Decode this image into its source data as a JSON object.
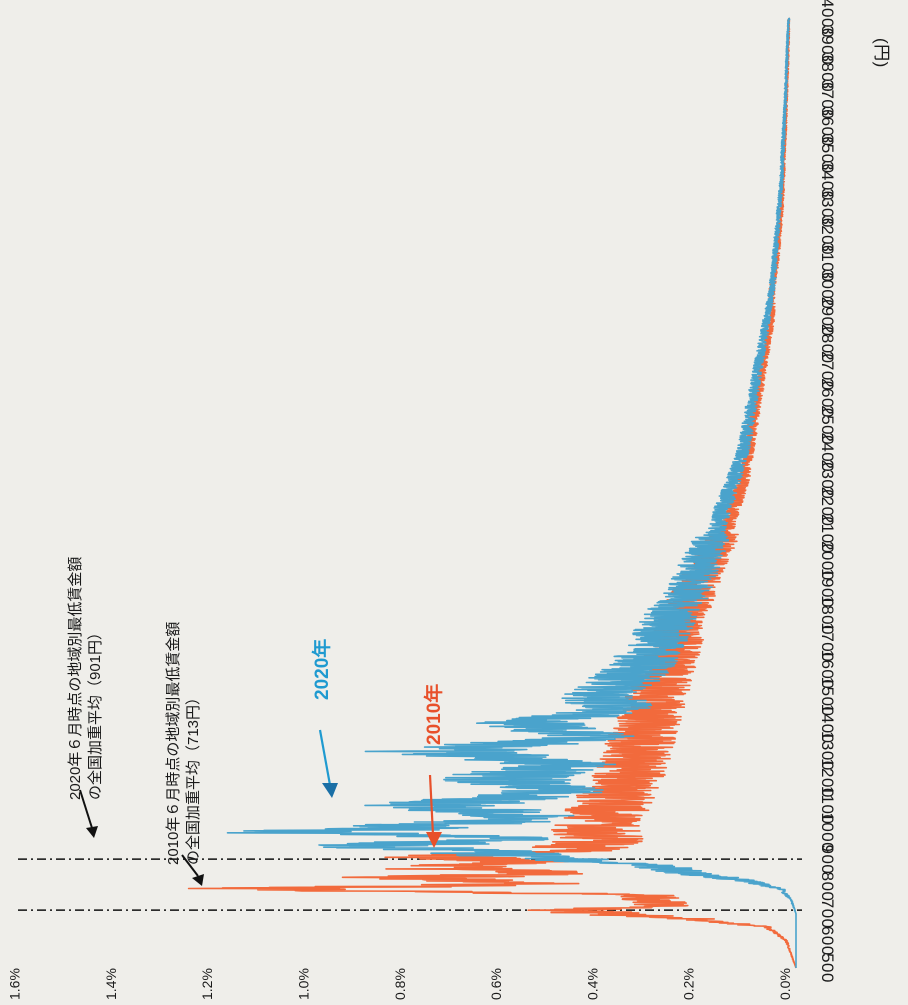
{
  "chart_data": {
    "type": "line",
    "orientation": "rotated-90-clockwise",
    "x_unit": "(円)",
    "x_ticks": [
      500,
      600,
      700,
      800,
      900,
      1000,
      1100,
      1200,
      1300,
      1400,
      1500,
      1600,
      1700,
      1800,
      1900,
      2000,
      2100,
      2200,
      2300,
      2400,
      2500,
      2600,
      2700,
      2800,
      2900,
      3000,
      3100,
      3200,
      3300,
      3400,
      3500,
      3600,
      3700,
      3800,
      3900,
      4000
    ],
    "x_tick_labels": [
      "500",
      "600",
      "700",
      "800",
      "900",
      "1000",
      "1100",
      "1200",
      "1300",
      "1400",
      "1500",
      "1600",
      "1700",
      "1800",
      "1900",
      "2000",
      "2100",
      "2200",
      "2300",
      "2400",
      "2500",
      "2600",
      "2700",
      "2800",
      "2900",
      "3000",
      "3100",
      "3200",
      "3300",
      "3400",
      "3500",
      "3600",
      "3700",
      "3800",
      "3900",
      "4000"
    ],
    "y_ticks": [
      0,
      0.2,
      0.4,
      0.6,
      0.8,
      1.0,
      1.2,
      1.4,
      1.6
    ],
    "y_tick_labels": [
      "0.0%",
      "0.2%",
      "0.4%",
      "0.6%",
      "0.8%",
      "1.0%",
      "1.2%",
      "1.4%",
      "1.6%"
    ],
    "xlim": [
      500,
      4000
    ],
    "ylim": [
      0,
      1.6
    ],
    "grid": false,
    "series": [
      {
        "name": "2010年",
        "color": "#f26a3c",
        "x": [
          500,
          550,
          600,
          650,
          680,
          700,
          713,
          730,
          750,
          770,
          790,
          810,
          830,
          850,
          870,
          890,
          910,
          930,
          950,
          970,
          1000,
          1050,
          1100,
          1150,
          1200,
          1250,
          1300,
          1400,
          1500,
          1600,
          1700,
          1800,
          1900,
          2000,
          2100,
          2200,
          2300,
          2400,
          2500,
          2600,
          2700,
          2800,
          2900,
          3000,
          3100,
          3200,
          3300,
          3400,
          3500,
          3600,
          3700,
          3800,
          3900,
          4000
        ],
        "y": [
          0.0,
          0.01,
          0.02,
          0.06,
          0.2,
          0.4,
          0.47,
          0.28,
          0.3,
          0.3,
          1.15,
          0.55,
          0.85,
          0.5,
          0.78,
          0.55,
          0.8,
          0.45,
          0.45,
          0.4,
          0.42,
          0.4,
          0.39,
          0.37,
          0.35,
          0.34,
          0.33,
          0.31,
          0.29,
          0.27,
          0.25,
          0.23,
          0.21,
          0.18,
          0.15,
          0.13,
          0.11,
          0.1,
          0.09,
          0.08,
          0.07,
          0.06,
          0.05,
          0.05,
          0.04,
          0.035,
          0.03,
          0.027,
          0.025,
          0.022,
          0.02,
          0.018,
          0.016,
          0.015
        ]
      },
      {
        "name": "2020年",
        "color": "#4aa3cc",
        "x": [
          500,
          600,
          700,
          750,
          790,
          820,
          850,
          880,
          901,
          920,
          950,
          980,
          1000,
          1050,
          1100,
          1150,
          1200,
          1250,
          1300,
          1350,
          1400,
          1450,
          1500,
          1600,
          1700,
          1800,
          1900,
          2000,
          2100,
          2200,
          2300,
          2400,
          2500,
          2600,
          2700,
          2800,
          2900,
          3000,
          3100,
          3200,
          3300,
          3400,
          3500,
          3600,
          3700,
          3800,
          3900,
          4000
        ],
        "y": [
          0.0,
          0.0,
          0.0,
          0.01,
          0.03,
          0.1,
          0.22,
          0.32,
          0.48,
          0.62,
          0.85,
          0.6,
          1.02,
          0.55,
          0.75,
          0.5,
          0.62,
          0.48,
          0.75,
          0.42,
          0.56,
          0.38,
          0.4,
          0.33,
          0.29,
          0.26,
          0.22,
          0.2,
          0.17,
          0.15,
          0.13,
          0.11,
          0.1,
          0.09,
          0.08,
          0.07,
          0.06,
          0.05,
          0.045,
          0.04,
          0.035,
          0.03,
          0.028,
          0.025,
          0.022,
          0.02,
          0.018,
          0.015
        ]
      }
    ],
    "reference_lines": [
      {
        "x": 713,
        "label": [
          "2010年６月時点の地域別最低賃金額",
          "の全国加重平均（713円）"
        ]
      },
      {
        "x": 901,
        "label": [
          "2020年６月時点の地域別最低賃金額",
          "の全国加重平均（901円）"
        ]
      }
    ],
    "series_labels": [
      {
        "text": "2020年",
        "color": "#1f9ad0"
      },
      {
        "text": "2010年",
        "color": "#e8502a"
      }
    ]
  }
}
